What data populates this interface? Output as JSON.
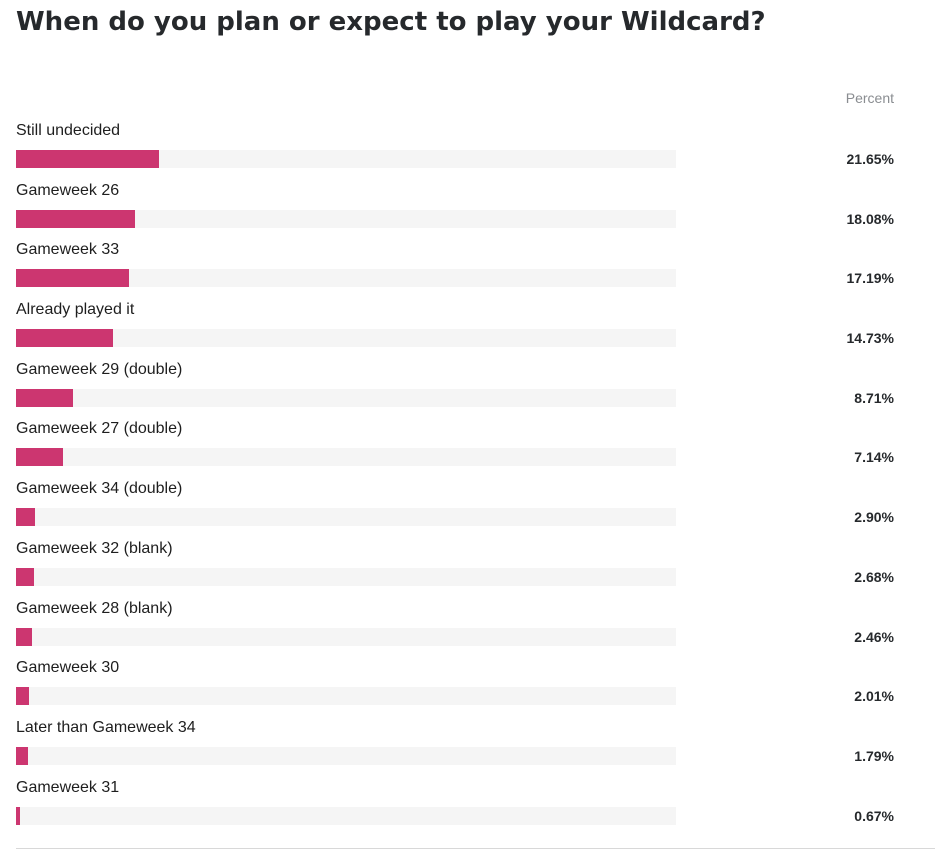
{
  "chart_data": {
    "type": "bar",
    "orientation": "horizontal",
    "title": "When do you plan or expect to play your Wildcard?",
    "value_column_header": "Percent",
    "value_format": "percent_2dp",
    "bar_color": "#cc3670",
    "track_color": "#f5f5f5",
    "xlim": [
      0,
      100
    ],
    "categories": [
      "Still undecided",
      "Gameweek 26",
      "Gameweek 33",
      "Already played it",
      "Gameweek 29 (double)",
      "Gameweek 27 (double)",
      "Gameweek 34 (double)",
      "Gameweek 32 (blank)",
      "Gameweek 28 (blank)",
      "Gameweek 30",
      "Later than Gameweek 34",
      "Gameweek 31"
    ],
    "values": [
      21.65,
      18.08,
      17.19,
      14.73,
      8.71,
      7.14,
      2.9,
      2.68,
      2.46,
      2.01,
      1.79,
      0.67
    ],
    "value_labels": [
      "21.65%",
      "18.08%",
      "17.19%",
      "14.73%",
      "8.71%",
      "7.14%",
      "2.90%",
      "2.68%",
      "2.46%",
      "2.01%",
      "1.79%",
      "0.67%"
    ]
  }
}
